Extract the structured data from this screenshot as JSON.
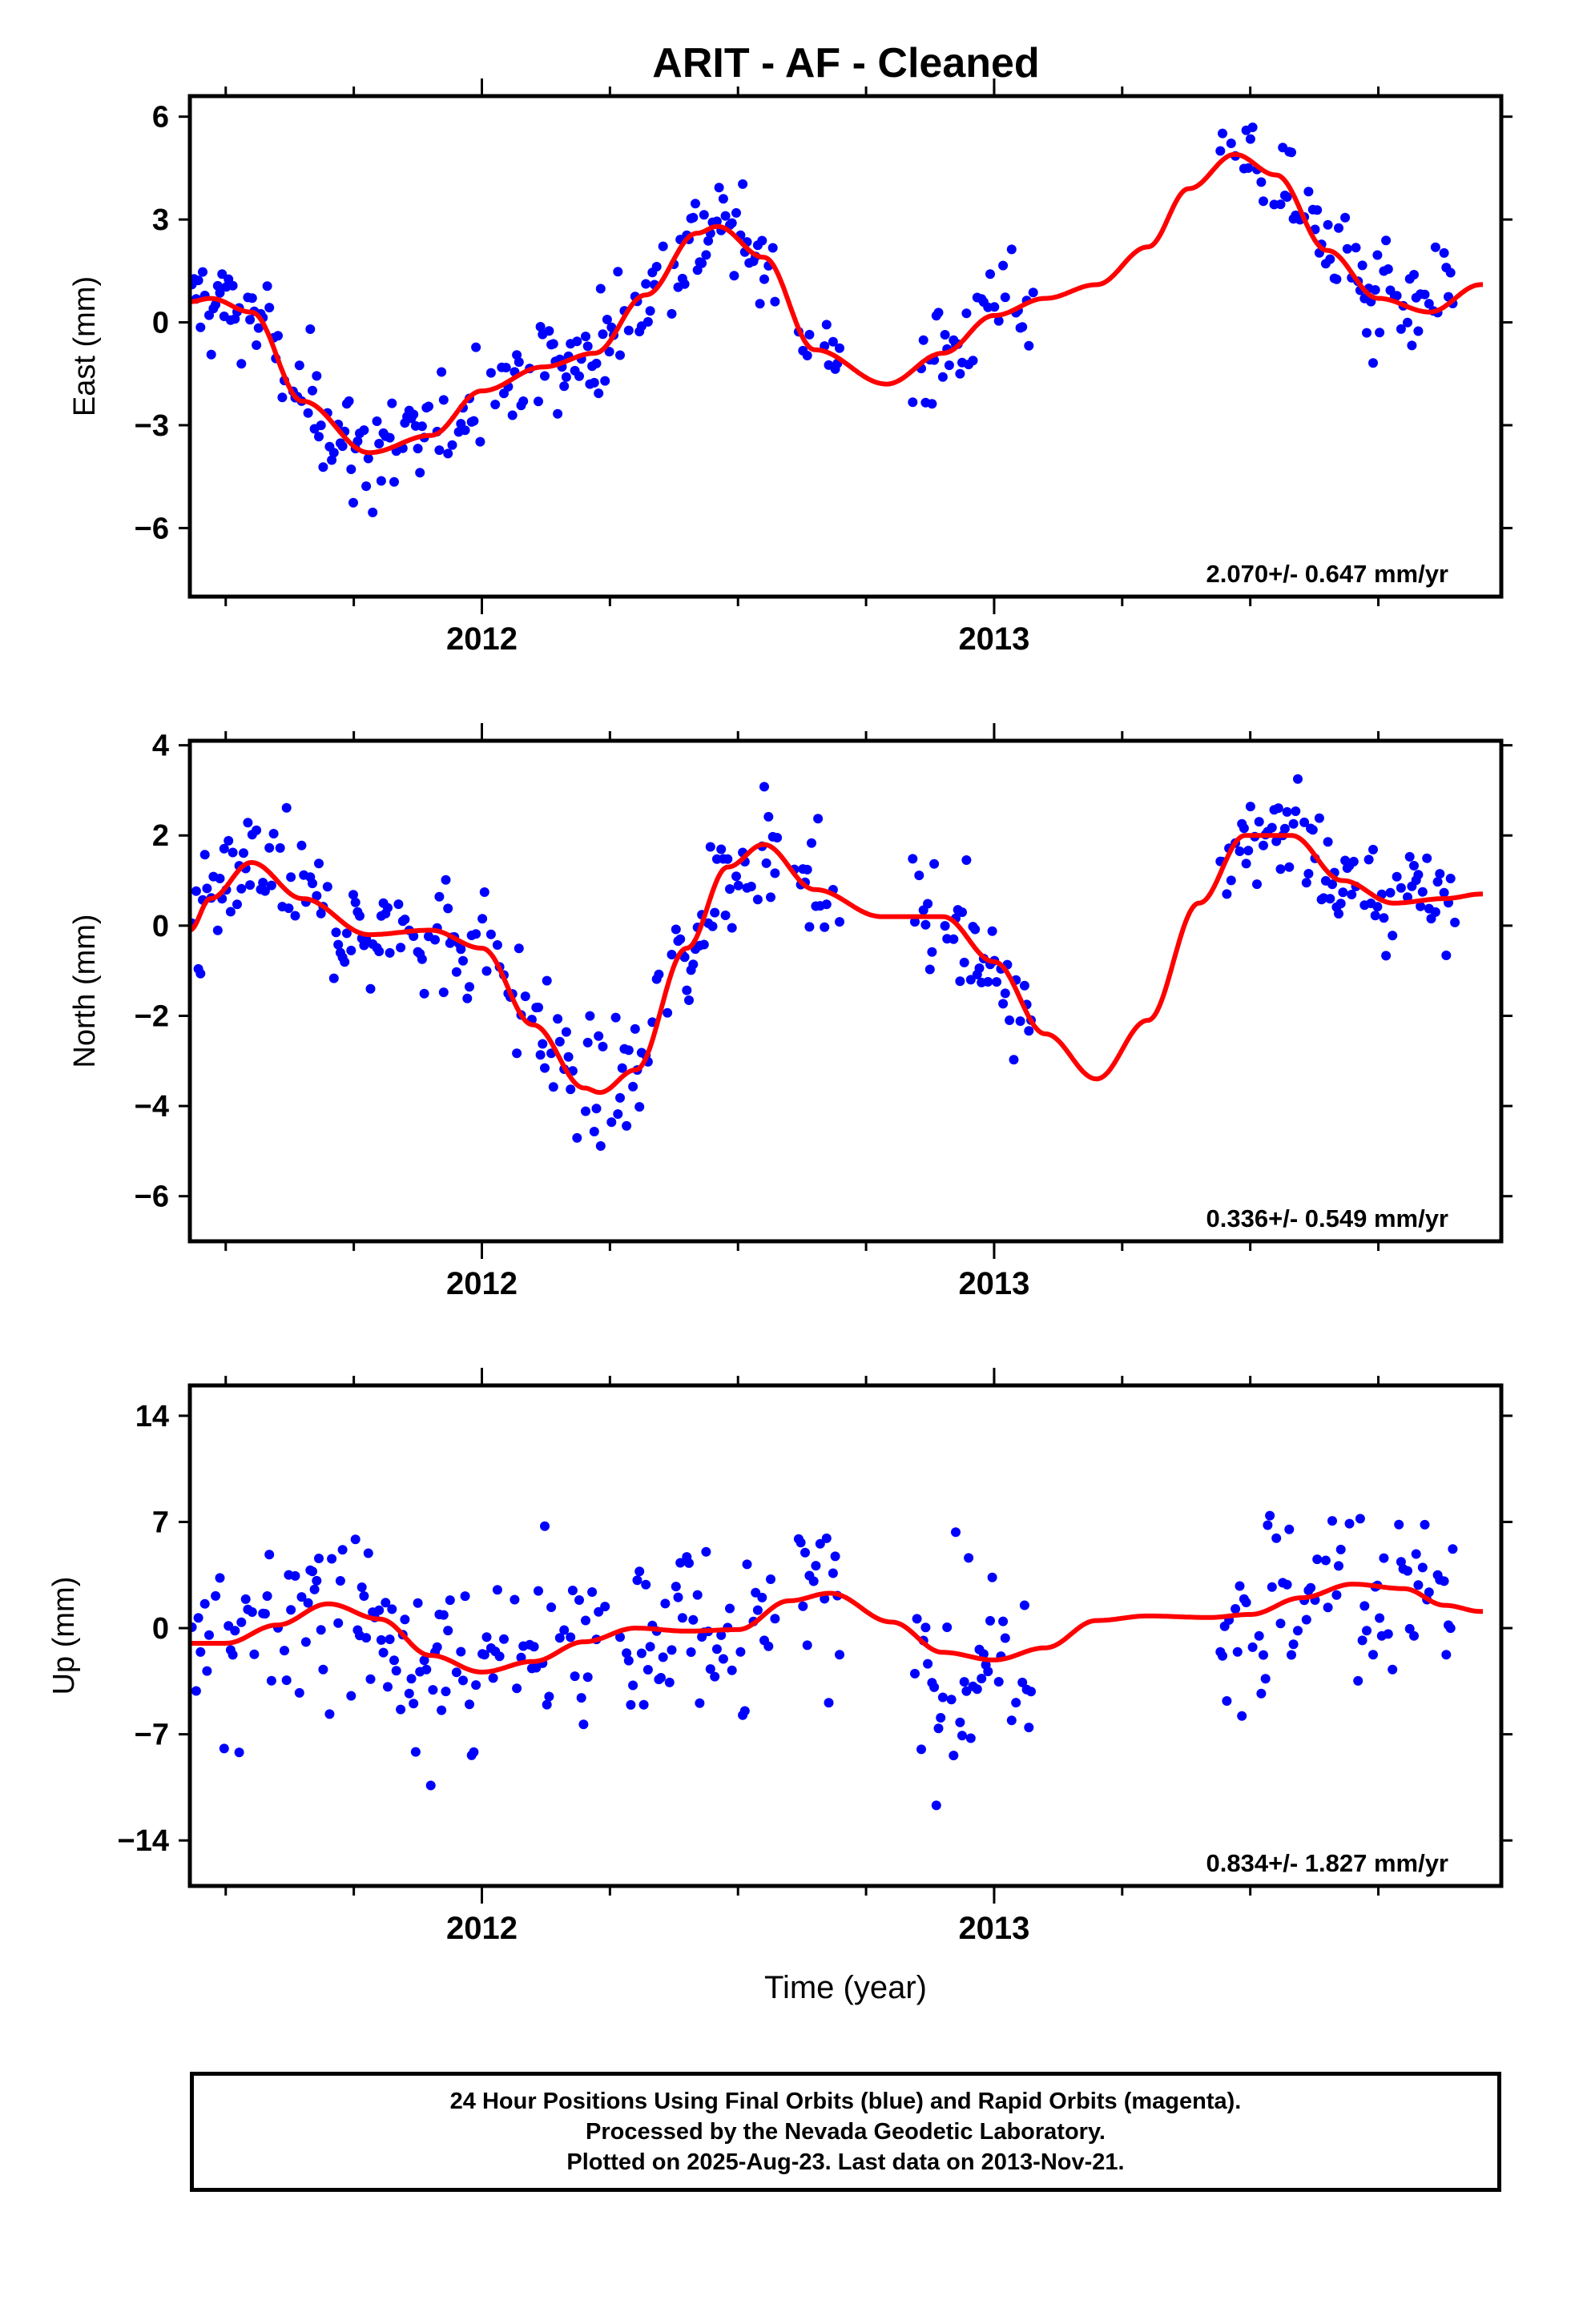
{
  "title": "ARIT  - AF - Cleaned",
  "colors": {
    "points": "#0000ff",
    "fit": "#ff0000",
    "frame": "#000000"
  },
  "chart_data": [
    {
      "type": "scatter",
      "name": "east",
      "ylabel": "East (mm)",
      "xlim": [
        2011.43,
        2013.99
      ],
      "ylim": [
        -8.0,
        6.6
      ],
      "yticks": [
        6,
        3,
        0,
        -3,
        -6
      ],
      "ytick_labels": [
        "6",
        "3",
        "0",
        "−3",
        "−6"
      ],
      "xticks": [
        2012,
        2013
      ],
      "xtick_labels": [
        "2012",
        "2013"
      ],
      "rate_label": "2.070+/- 0.647 mm/yr",
      "scatter_spread": 1.1,
      "fit": {
        "x": [
          2011.43,
          2011.47,
          2011.55,
          2011.65,
          2011.78,
          2011.9,
          2012.0,
          2012.12,
          2012.22,
          2012.32,
          2012.42,
          2012.46,
          2012.55,
          2012.65,
          2012.79,
          2012.9,
          2013.0,
          2013.1,
          2013.2,
          2013.3,
          2013.38,
          2013.47,
          2013.55,
          2013.65,
          2013.75,
          2013.85,
          2013.95
        ],
        "y": [
          0.6,
          0.7,
          0.3,
          -2.3,
          -3.8,
          -3.3,
          -2.0,
          -1.3,
          -0.9,
          0.8,
          2.6,
          2.8,
          1.9,
          -0.8,
          -1.8,
          -0.9,
          0.2,
          0.7,
          1.1,
          2.2,
          3.9,
          4.9,
          4.3,
          2.1,
          0.7,
          0.3,
          1.1
        ]
      },
      "gaps": [
        [
          2012.58,
          2012.61
        ],
        [
          2012.7,
          2012.84
        ],
        [
          2013.08,
          2013.44
        ]
      ]
    },
    {
      "type": "scatter",
      "name": "north",
      "ylabel": "North (mm)",
      "xlim": [
        2011.43,
        2013.99
      ],
      "ylim": [
        -7.0,
        4.1
      ],
      "yticks": [
        4,
        2,
        0,
        -2,
        -4,
        -6
      ],
      "ytick_labels": [
        "4",
        "2",
        "0",
        "−2",
        "−4",
        "−6"
      ],
      "xticks": [
        2012,
        2013
      ],
      "xtick_labels": [
        "2012",
        "2013"
      ],
      "rate_label": "0.336+/- 0.549 mm/yr",
      "scatter_spread": 0.9,
      "fit": {
        "x": [
          2011.43,
          2011.47,
          2011.55,
          2011.65,
          2011.78,
          2011.9,
          2012.0,
          2012.1,
          2012.2,
          2012.23,
          2012.3,
          2012.4,
          2012.48,
          2012.55,
          2012.65,
          2012.78,
          2012.9,
          2013.0,
          2013.1,
          2013.2,
          2013.3,
          2013.4,
          2013.49,
          2013.58,
          2013.68,
          2013.78,
          2013.88,
          2013.95
        ],
        "y": [
          -0.1,
          0.6,
          1.4,
          0.6,
          -0.2,
          -0.1,
          -0.5,
          -2.2,
          -3.6,
          -3.7,
          -3.2,
          -0.5,
          1.3,
          1.8,
          0.8,
          0.2,
          0.2,
          -0.8,
          -2.4,
          -3.4,
          -2.1,
          0.5,
          2.0,
          2.0,
          1.0,
          0.5,
          0.6,
          0.7
        ]
      },
      "gaps": [
        [
          2012.58,
          2012.61
        ],
        [
          2012.7,
          2012.84
        ],
        [
          2013.08,
          2013.44
        ]
      ]
    },
    {
      "type": "scatter",
      "name": "up",
      "ylabel": "Up (mm)",
      "xlim": [
        2011.43,
        2013.99
      ],
      "ylim": [
        -17.0,
        16.0
      ],
      "yticks": [
        14,
        7,
        0,
        -7,
        -14
      ],
      "ytick_labels": [
        "14",
        "7",
        "0",
        "−7",
        "−14"
      ],
      "xticks": [
        2012,
        2013
      ],
      "xtick_labels": [
        "2012",
        "2013"
      ],
      "xlabel": "Time (year)",
      "rate_label": "0.834+/- 1.827 mm/yr",
      "scatter_spread": 4.5,
      "fit": {
        "x": [
          2011.43,
          2011.5,
          2011.6,
          2011.7,
          2011.8,
          2011.9,
          2012.0,
          2012.1,
          2012.2,
          2012.3,
          2012.4,
          2012.5,
          2012.6,
          2012.68,
          2012.8,
          2012.9,
          2013.0,
          2013.1,
          2013.2,
          2013.3,
          2013.42,
          2013.5,
          2013.6,
          2013.7,
          2013.8,
          2013.88,
          2013.95
        ],
        "y": [
          -1.0,
          -1.0,
          0.2,
          1.6,
          0.6,
          -1.8,
          -2.9,
          -2.2,
          -0.9,
          0.0,
          -0.2,
          -0.1,
          1.8,
          2.3,
          0.4,
          -1.6,
          -2.1,
          -1.3,
          0.5,
          0.8,
          0.7,
          0.9,
          2.0,
          2.9,
          2.6,
          1.5,
          1.1
        ]
      },
      "gaps": [
        [
          2012.58,
          2012.61
        ],
        [
          2012.7,
          2012.84
        ],
        [
          2013.08,
          2013.44
        ]
      ]
    }
  ],
  "footer": {
    "line1": "24 Hour Positions Using Final Orbits (blue) and Rapid Orbits (magenta).",
    "line2": "Processed by the Nevada Geodetic Laboratory.",
    "line3": "Plotted on 2025-Aug-23. Last data on 2013-Nov-21."
  }
}
